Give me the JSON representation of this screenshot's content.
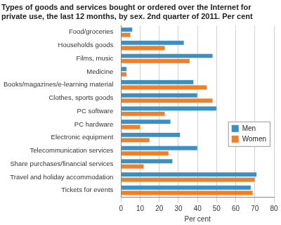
{
  "chart_data": {
    "type": "bar",
    "orientation": "horizontal",
    "title": [
      "Types of goods and services bought or ordered over the Internet for",
      "private use, the last 12 months, by sex. 2nd quarter of 2011. Per cent"
    ],
    "x_label": "Per cent",
    "categories": [
      "Food/groceries",
      "Households goods",
      "Films, music",
      "Medicine",
      "Books/magazines/e-learning material",
      "Clothes, sports goods",
      "PC software",
      "PC hardware",
      "Electronic equipment",
      "Telecommunication services",
      "Share purchases/financial services",
      "Travel and holiday accommodation",
      "Tickets for events"
    ],
    "series": [
      {
        "name": "Men",
        "color": "#3a8fc4",
        "values": [
          6,
          33,
          48,
          3,
          38,
          40,
          50,
          26,
          31,
          40,
          27,
          71,
          68
        ]
      },
      {
        "name": "Women",
        "color": "#f07f28",
        "values": [
          5,
          23,
          36,
          3,
          45,
          48,
          23,
          10,
          15,
          25,
          12,
          70,
          69
        ]
      }
    ],
    "xlim": [
      0,
      80
    ],
    "xticks": [
      0,
      10,
      20,
      30,
      40,
      50,
      60,
      70,
      80
    ],
    "grid": true,
    "legend": "right"
  }
}
